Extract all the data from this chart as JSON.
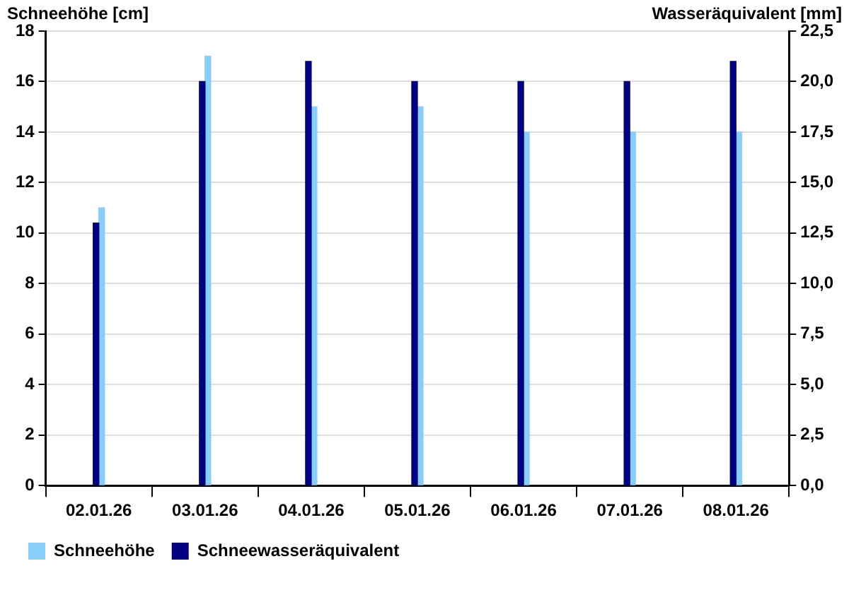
{
  "chart_data": {
    "type": "bar",
    "ylabel": "Schneehöhe [cm]",
    "y2label": "Wasseräquivalent [mm]",
    "categories": [
      "02.01.26",
      "03.01.26",
      "04.01.26",
      "05.01.26",
      "06.01.26",
      "07.01.26",
      "08.01.26"
    ],
    "series": [
      {
        "name": "Schneehöhe",
        "color": "#87cefa",
        "values": [
          11,
          17,
          15,
          15,
          14,
          14,
          14
        ]
      },
      {
        "name": "Schneewasseräquivalent",
        "color": "#000080",
        "axis": "y2",
        "values": [
          13.0,
          20.0,
          21.0,
          20.0,
          20.0,
          20.0,
          21.0
        ]
      }
    ],
    "ylim": [
      0,
      18
    ],
    "yticks": [
      0,
      2,
      4,
      6,
      8,
      10,
      12,
      14,
      16,
      18
    ],
    "y2lim": [
      0,
      22.5
    ],
    "y2ticks": [
      {
        "value": 0,
        "label": "0,0"
      },
      {
        "value": 2.5,
        "label": "2,5"
      },
      {
        "value": 5,
        "label": "5,0"
      },
      {
        "value": 7.5,
        "label": "7,5"
      },
      {
        "value": 10,
        "label": "10,0"
      },
      {
        "value": 12.5,
        "label": "12,5"
      },
      {
        "value": 15,
        "label": "15,0"
      },
      {
        "value": 17.5,
        "label": "17,5"
      },
      {
        "value": 20,
        "label": "20,0"
      },
      {
        "value": 22.5,
        "label": "22,5"
      }
    ],
    "grid": "y",
    "legend": "bottom left"
  }
}
